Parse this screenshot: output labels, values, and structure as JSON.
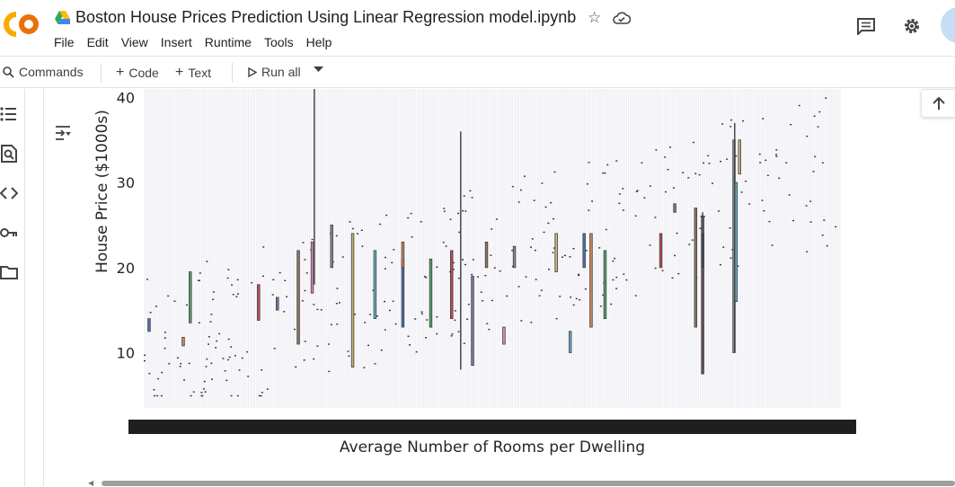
{
  "app": {
    "logo_text": "CO",
    "brand_color": "#f9ab00"
  },
  "notebook": {
    "title": "Boston House Prices Prediction Using Linear Regression model.ipynb"
  },
  "menu": {
    "items": [
      "File",
      "Edit",
      "View",
      "Insert",
      "Runtime",
      "Tools",
      "Help"
    ]
  },
  "toolbar": {
    "commands_label": "Commands",
    "code_label": "Code",
    "text_label": "Text",
    "run_all_label": "Run all"
  },
  "sidebar": {
    "icons": [
      "table-of-contents-icon",
      "find-replace-icon",
      "code-snippets-icon",
      "secrets-key-icon",
      "files-folder-icon"
    ]
  },
  "chart_data": {
    "type": "box",
    "xlabel": "Average Number of Rooms per Dwelling",
    "ylabel": "House Price ($1000s)",
    "ylim": [
      3.5,
      41
    ],
    "yticks": [
      10,
      20,
      30,
      40
    ],
    "xticks_note": "overlapping unreadable tick labels",
    "grid": true,
    "num_categories": 446,
    "colors": {
      "background": "#eaeaf2",
      "grid": "#ffffff",
      "box": "#4c72b0",
      "median": "#555555"
    }
  }
}
